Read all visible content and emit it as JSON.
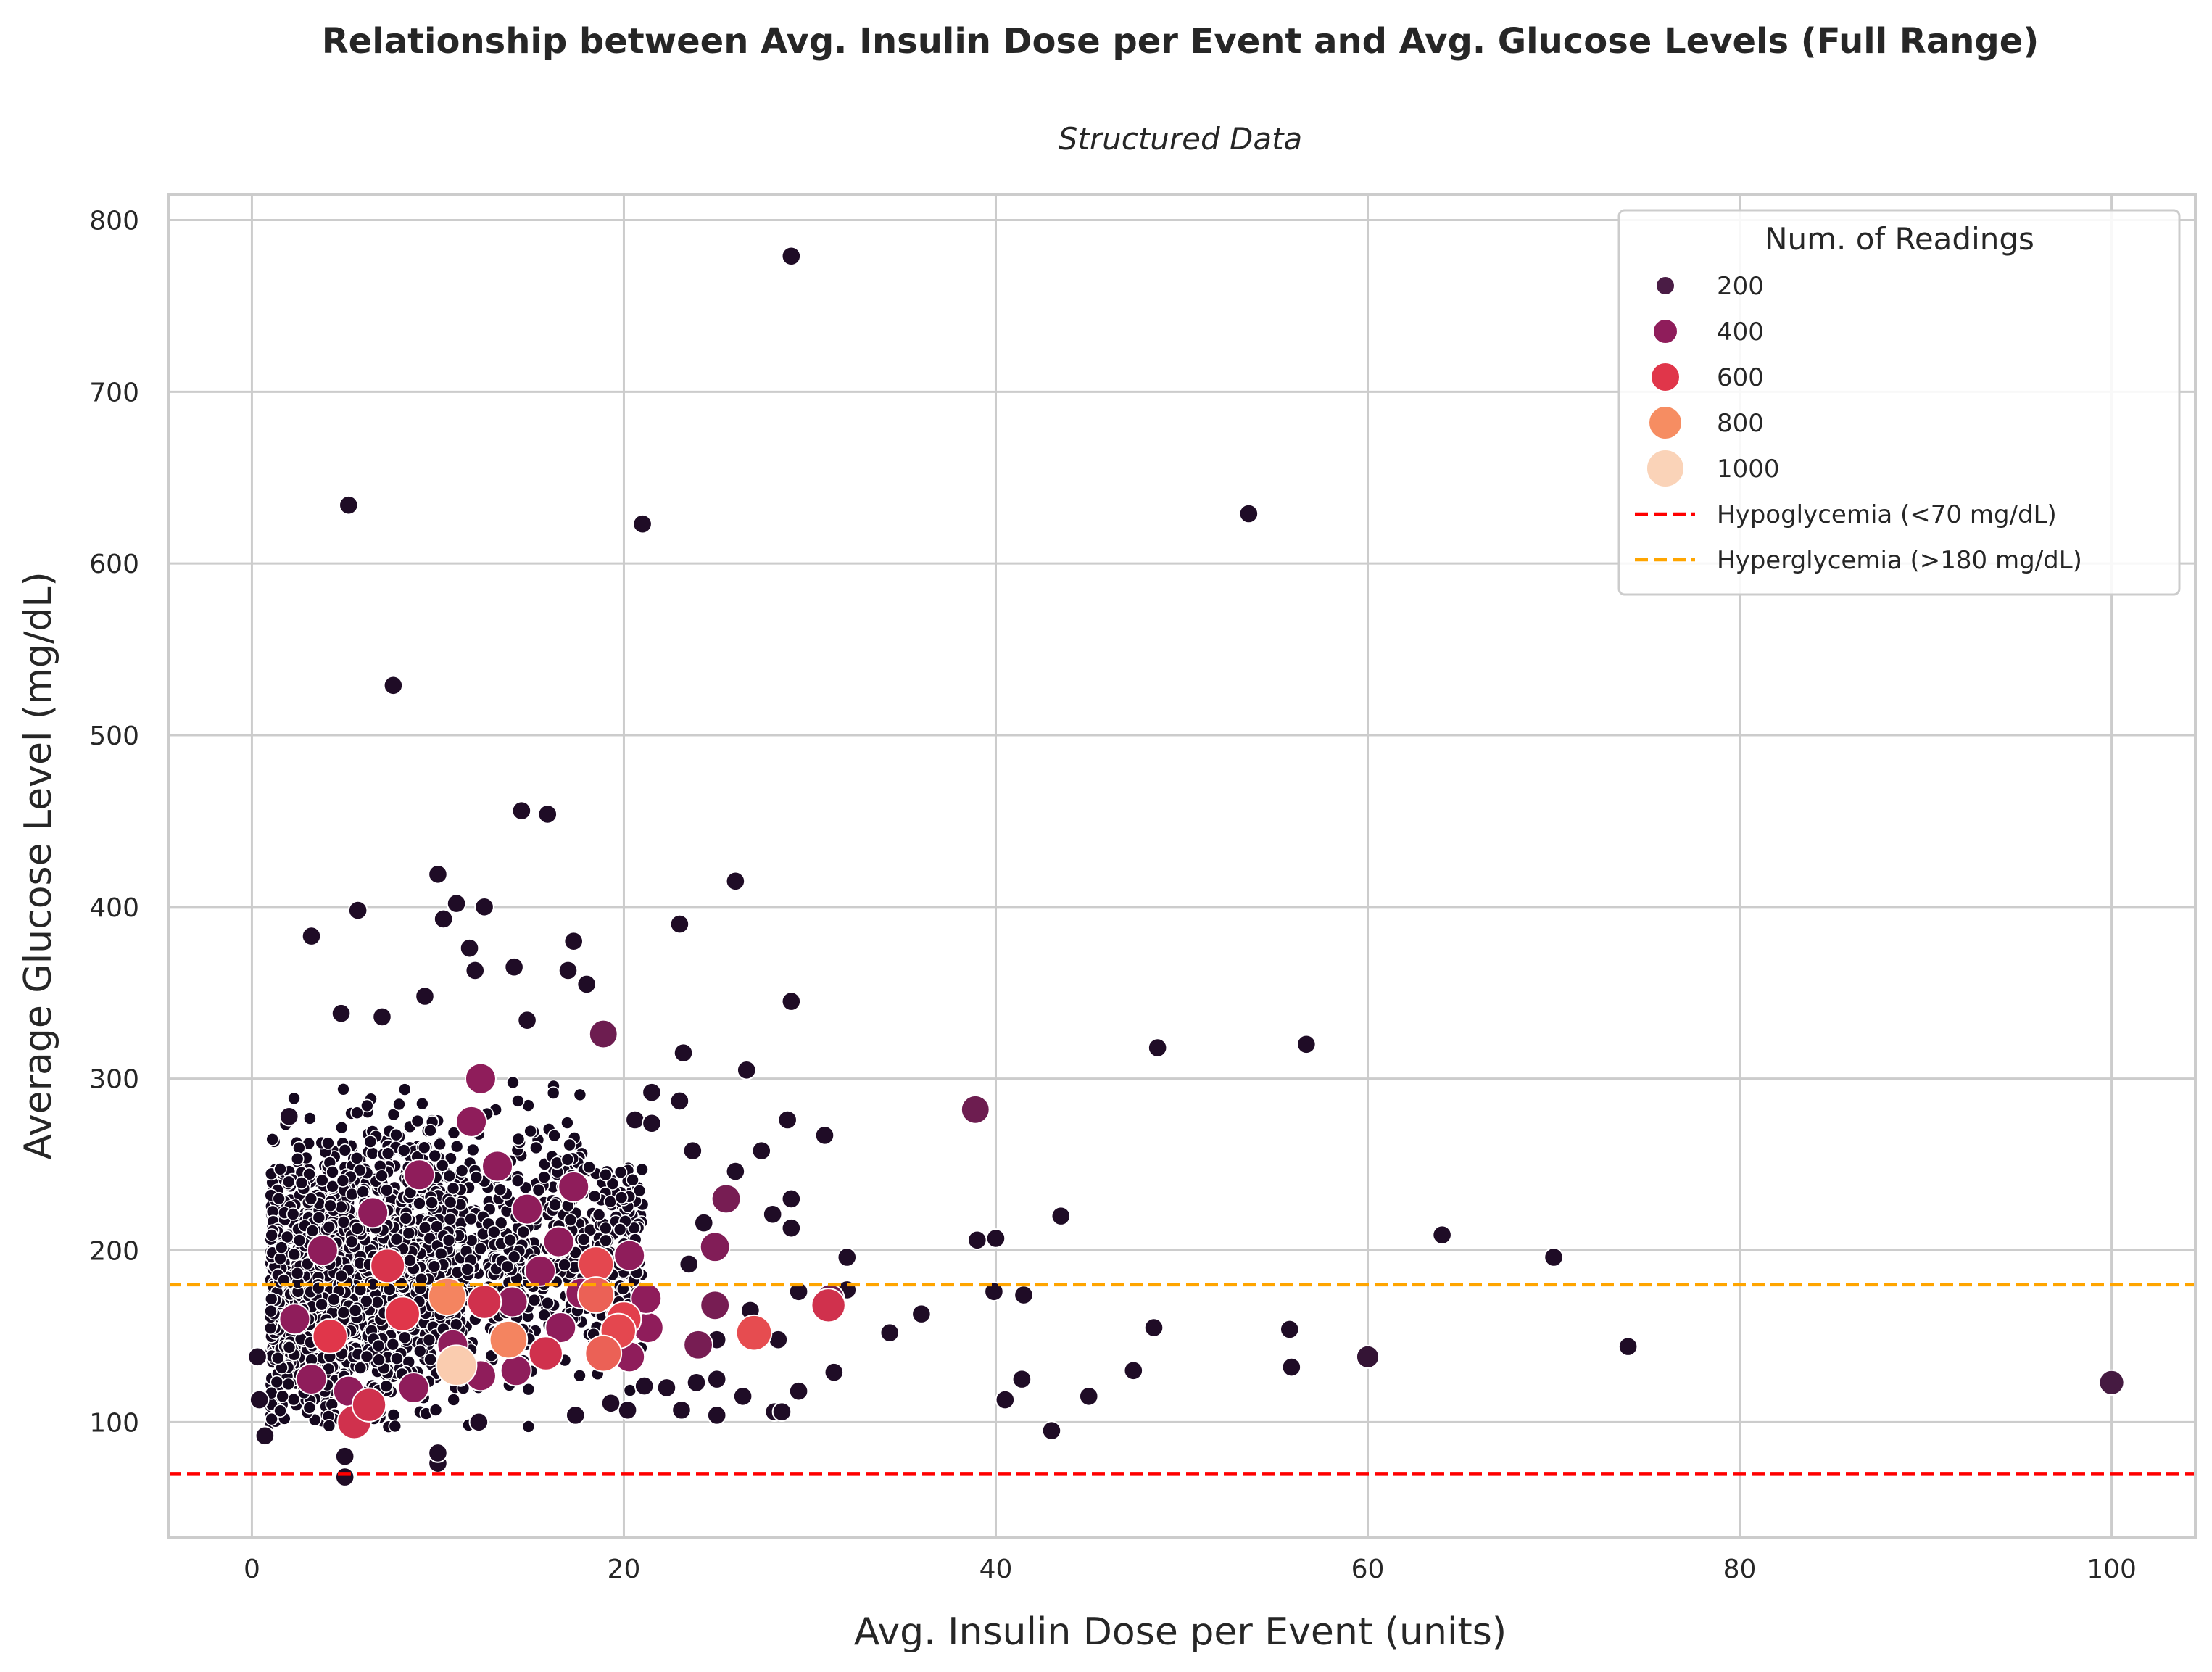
{
  "chart_data": {
    "type": "scatter",
    "title": "Relationship between Avg. Insulin Dose per Event and Avg. Glucose Levels (Full Range)",
    "subtitle": "Structured Data",
    "xlabel": "Avg. Insulin Dose per Event (units)",
    "ylabel": "Average Glucose Level (mg/dL)",
    "xlim": [
      -4.5,
      104.5
    ],
    "ylim": [
      33,
      815
    ],
    "xticks": [
      0,
      20,
      40,
      60,
      80,
      100
    ],
    "yticks": [
      100,
      200,
      300,
      400,
      500,
      600,
      700,
      800
    ],
    "grid": true,
    "legend_position": "top-right",
    "size_legend": {
      "title": "Num. of Readings",
      "entries": [
        {
          "label": "200",
          "value": 200,
          "color": "#4a1c45"
        },
        {
          "label": "400",
          "value": 400,
          "color": "#8f1d5b"
        },
        {
          "label": "600",
          "value": 600,
          "color": "#e0364a"
        },
        {
          "label": "800",
          "value": 800,
          "color": "#f68d62"
        },
        {
          "label": "1000",
          "value": 1000,
          "color": "#fad3b8"
        }
      ]
    },
    "reference_lines": [
      {
        "label": "Hypoglycemia (<70 mg/dL)",
        "y": 70,
        "color": "#ff0000",
        "style": "dashed"
      },
      {
        "label": "Hyperglycemia (>180 mg/dL)",
        "y": 180,
        "color": "#ffa500",
        "style": "dashed"
      }
    ],
    "cluster": {
      "description_note": "dense cluster of many small points",
      "x_range": [
        1,
        21
      ],
      "y_range": [
        95,
        300
      ],
      "count": 2200,
      "readings": 60
    },
    "points": [
      {
        "x": 29.0,
        "y": 779,
        "readings": 40
      },
      {
        "x": 5.2,
        "y": 634,
        "readings": 40
      },
      {
        "x": 21.0,
        "y": 623,
        "readings": 40
      },
      {
        "x": 53.6,
        "y": 629,
        "readings": 40
      },
      {
        "x": 7.6,
        "y": 529,
        "readings": 40
      },
      {
        "x": 14.5,
        "y": 456,
        "readings": 40
      },
      {
        "x": 15.9,
        "y": 454,
        "readings": 40
      },
      {
        "x": 10.0,
        "y": 419,
        "readings": 40
      },
      {
        "x": 26.0,
        "y": 415,
        "readings": 40
      },
      {
        "x": 5.7,
        "y": 398,
        "readings": 40
      },
      {
        "x": 3.2,
        "y": 383,
        "readings": 40
      },
      {
        "x": 23.0,
        "y": 390,
        "readings": 40
      },
      {
        "x": 11.0,
        "y": 402,
        "readings": 40
      },
      {
        "x": 12.5,
        "y": 400,
        "readings": 40
      },
      {
        "x": 17.3,
        "y": 380,
        "readings": 40
      },
      {
        "x": 14.1,
        "y": 365,
        "readings": 40
      },
      {
        "x": 17.0,
        "y": 363,
        "readings": 40
      },
      {
        "x": 18.0,
        "y": 355,
        "readings": 40
      },
      {
        "x": 29.0,
        "y": 345,
        "readings": 40
      },
      {
        "x": 14.8,
        "y": 334,
        "readings": 40
      },
      {
        "x": 18.9,
        "y": 326,
        "readings": 300
      },
      {
        "x": 23.2,
        "y": 315,
        "readings": 40
      },
      {
        "x": 26.6,
        "y": 305,
        "readings": 40
      },
      {
        "x": 21.5,
        "y": 292,
        "readings": 40
      },
      {
        "x": 23.0,
        "y": 287,
        "readings": 40
      },
      {
        "x": 20.6,
        "y": 276,
        "readings": 40
      },
      {
        "x": 21.5,
        "y": 274,
        "readings": 40
      },
      {
        "x": 28.8,
        "y": 276,
        "readings": 40
      },
      {
        "x": 30.8,
        "y": 267,
        "readings": 40
      },
      {
        "x": 27.4,
        "y": 258,
        "readings": 40
      },
      {
        "x": 23.7,
        "y": 258,
        "readings": 40
      },
      {
        "x": 26.0,
        "y": 246,
        "readings": 40
      },
      {
        "x": 25.5,
        "y": 230,
        "readings": 330
      },
      {
        "x": 29.0,
        "y": 230,
        "readings": 40
      },
      {
        "x": 28.0,
        "y": 221,
        "readings": 40
      },
      {
        "x": 29.0,
        "y": 213,
        "readings": 40
      },
      {
        "x": 24.3,
        "y": 216,
        "readings": 40
      },
      {
        "x": 24.9,
        "y": 202,
        "readings": 360
      },
      {
        "x": 23.5,
        "y": 192,
        "readings": 40
      },
      {
        "x": 32.0,
        "y": 196,
        "readings": 40
      },
      {
        "x": 27.0,
        "y": 152,
        "readings": 650
      },
      {
        "x": 31.0,
        "y": 168,
        "readings": 560
      },
      {
        "x": 31.1,
        "y": 172,
        "readings": 300
      },
      {
        "x": 26.8,
        "y": 165,
        "readings": 40
      },
      {
        "x": 28.3,
        "y": 148,
        "readings": 40
      },
      {
        "x": 24.0,
        "y": 145,
        "readings": 330
      },
      {
        "x": 24.9,
        "y": 168,
        "readings": 330
      },
      {
        "x": 25.0,
        "y": 148,
        "readings": 40
      },
      {
        "x": 29.4,
        "y": 176,
        "readings": 40
      },
      {
        "x": 32.0,
        "y": 177,
        "readings": 40
      },
      {
        "x": 34.3,
        "y": 152,
        "readings": 40
      },
      {
        "x": 36.0,
        "y": 163,
        "readings": 40
      },
      {
        "x": 23.9,
        "y": 123,
        "readings": 40
      },
      {
        "x": 21.1,
        "y": 121,
        "readings": 40
      },
      {
        "x": 22.3,
        "y": 120,
        "readings": 40
      },
      {
        "x": 25.0,
        "y": 125,
        "readings": 40
      },
      {
        "x": 26.4,
        "y": 115,
        "readings": 40
      },
      {
        "x": 29.4,
        "y": 118,
        "readings": 40
      },
      {
        "x": 31.3,
        "y": 129,
        "readings": 40
      },
      {
        "x": 23.1,
        "y": 107,
        "readings": 40
      },
      {
        "x": 25.0,
        "y": 104,
        "readings": 40
      },
      {
        "x": 28.1,
        "y": 106,
        "readings": 40
      },
      {
        "x": 28.5,
        "y": 106,
        "readings": 40
      },
      {
        "x": 20.2,
        "y": 107,
        "readings": 40
      },
      {
        "x": 19.3,
        "y": 111,
        "readings": 40
      },
      {
        "x": 38.9,
        "y": 282,
        "readings": 300
      },
      {
        "x": 48.7,
        "y": 318,
        "readings": 40
      },
      {
        "x": 56.7,
        "y": 320,
        "readings": 40
      },
      {
        "x": 39.0,
        "y": 206,
        "readings": 40
      },
      {
        "x": 40.0,
        "y": 207,
        "readings": 40
      },
      {
        "x": 43.5,
        "y": 220,
        "readings": 40
      },
      {
        "x": 39.9,
        "y": 176,
        "readings": 40
      },
      {
        "x": 41.5,
        "y": 174,
        "readings": 40
      },
      {
        "x": 48.5,
        "y": 155,
        "readings": 40
      },
      {
        "x": 55.8,
        "y": 154,
        "readings": 40
      },
      {
        "x": 60.0,
        "y": 138,
        "readings": 120
      },
      {
        "x": 55.9,
        "y": 132,
        "readings": 40
      },
      {
        "x": 47.4,
        "y": 130,
        "readings": 40
      },
      {
        "x": 41.4,
        "y": 125,
        "readings": 40
      },
      {
        "x": 45.0,
        "y": 115,
        "readings": 40
      },
      {
        "x": 40.5,
        "y": 113,
        "readings": 40
      },
      {
        "x": 43.0,
        "y": 95,
        "readings": 40
      },
      {
        "x": 64.0,
        "y": 209,
        "readings": 40
      },
      {
        "x": 70.0,
        "y": 196,
        "readings": 40
      },
      {
        "x": 74.0,
        "y": 144,
        "readings": 40
      },
      {
        "x": 100.0,
        "y": 123,
        "readings": 180
      },
      {
        "x": 5.0,
        "y": 68,
        "readings": 40
      },
      {
        "x": 5.0,
        "y": 80,
        "readings": 40
      },
      {
        "x": 10.0,
        "y": 76,
        "readings": 40
      },
      {
        "x": 10.0,
        "y": 82,
        "readings": 40
      },
      {
        "x": 12.2,
        "y": 100,
        "readings": 40
      },
      {
        "x": 17.4,
        "y": 104,
        "readings": 40
      },
      {
        "x": 0.3,
        "y": 138,
        "readings": 40
      },
      {
        "x": 0.4,
        "y": 113,
        "readings": 40
      },
      {
        "x": 0.7,
        "y": 92,
        "readings": 40
      },
      {
        "x": 2.0,
        "y": 278,
        "readings": 40
      },
      {
        "x": 4.8,
        "y": 338,
        "readings": 40
      },
      {
        "x": 7.0,
        "y": 336,
        "readings": 40
      },
      {
        "x": 9.3,
        "y": 348,
        "readings": 40
      },
      {
        "x": 12.0,
        "y": 363,
        "readings": 40
      },
      {
        "x": 11.7,
        "y": 376,
        "readings": 40
      },
      {
        "x": 10.3,
        "y": 393,
        "readings": 40
      },
      {
        "x": 7.3,
        "y": 191,
        "readings": 580
      },
      {
        "x": 10.5,
        "y": 173,
        "readings": 780
      },
      {
        "x": 13.8,
        "y": 148,
        "readings": 780
      },
      {
        "x": 11.0,
        "y": 133,
        "readings": 980
      },
      {
        "x": 18.5,
        "y": 174,
        "readings": 700
      },
      {
        "x": 18.5,
        "y": 192,
        "readings": 640
      },
      {
        "x": 19.7,
        "y": 153,
        "readings": 640
      },
      {
        "x": 20.0,
        "y": 160,
        "readings": 620
      },
      {
        "x": 18.9,
        "y": 140,
        "readings": 700
      },
      {
        "x": 5.5,
        "y": 100,
        "readings": 560
      },
      {
        "x": 6.3,
        "y": 110,
        "readings": 560
      },
      {
        "x": 4.2,
        "y": 150,
        "readings": 600
      },
      {
        "x": 8.1,
        "y": 163,
        "readings": 600
      },
      {
        "x": 12.5,
        "y": 170,
        "readings": 560
      },
      {
        "x": 15.8,
        "y": 140,
        "readings": 560
      },
      {
        "x": 14.0,
        "y": 170,
        "readings": 400
      },
      {
        "x": 16.6,
        "y": 155,
        "readings": 400
      },
      {
        "x": 12.3,
        "y": 127,
        "readings": 400
      },
      {
        "x": 5.2,
        "y": 118,
        "readings": 400
      },
      {
        "x": 3.2,
        "y": 125,
        "readings": 400
      },
      {
        "x": 20.3,
        "y": 138,
        "readings": 400
      },
      {
        "x": 20.3,
        "y": 197,
        "readings": 400
      },
      {
        "x": 21.3,
        "y": 155,
        "readings": 400
      },
      {
        "x": 21.2,
        "y": 172,
        "readings": 400
      },
      {
        "x": 12.3,
        "y": 300,
        "readings": 400
      },
      {
        "x": 11.8,
        "y": 275,
        "readings": 400
      },
      {
        "x": 13.2,
        "y": 249,
        "readings": 400
      },
      {
        "x": 14.8,
        "y": 224,
        "readings": 400
      },
      {
        "x": 9.0,
        "y": 244,
        "readings": 400
      },
      {
        "x": 6.5,
        "y": 222,
        "readings": 400
      },
      {
        "x": 3.8,
        "y": 200,
        "readings": 400
      },
      {
        "x": 15.5,
        "y": 188,
        "readings": 400
      },
      {
        "x": 16.5,
        "y": 205,
        "readings": 400
      },
      {
        "x": 17.3,
        "y": 237,
        "readings": 400
      },
      {
        "x": 2.3,
        "y": 160,
        "readings": 400
      },
      {
        "x": 8.7,
        "y": 120,
        "readings": 400
      },
      {
        "x": 10.8,
        "y": 145,
        "readings": 400
      },
      {
        "x": 14.2,
        "y": 130,
        "readings": 400
      },
      {
        "x": 17.7,
        "y": 175,
        "readings": 400
      }
    ]
  }
}
